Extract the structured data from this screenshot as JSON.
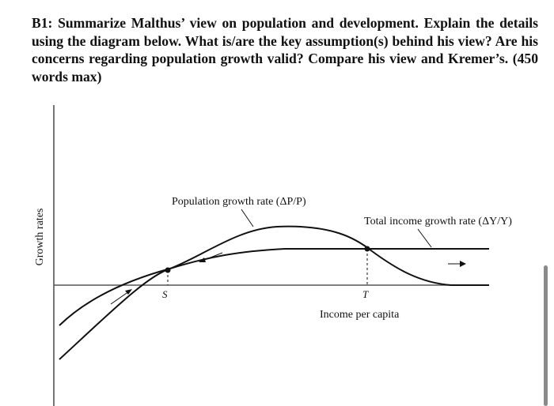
{
  "question": {
    "text": "B1: Summarize Malthus’ view on population and development. Explain the details using the diagram below. What is/are the key assumption(s) behind his view? Are his concerns regarding population growth valid? Compare his view and Kremer’s. (450 words max)"
  },
  "diagram": {
    "y_axis_label": "Growth rates",
    "x_axis_label": "Income per capita",
    "curve_population_label": "Population growth rate (ΔP/P)",
    "curve_income_label": "Total income growth rate (ΔY/Y)",
    "point_s_label": "S",
    "point_t_label": "T"
  },
  "colors": {
    "ink": "#111111",
    "axis": "#555555",
    "scrollbar": "#8a8a8a"
  }
}
